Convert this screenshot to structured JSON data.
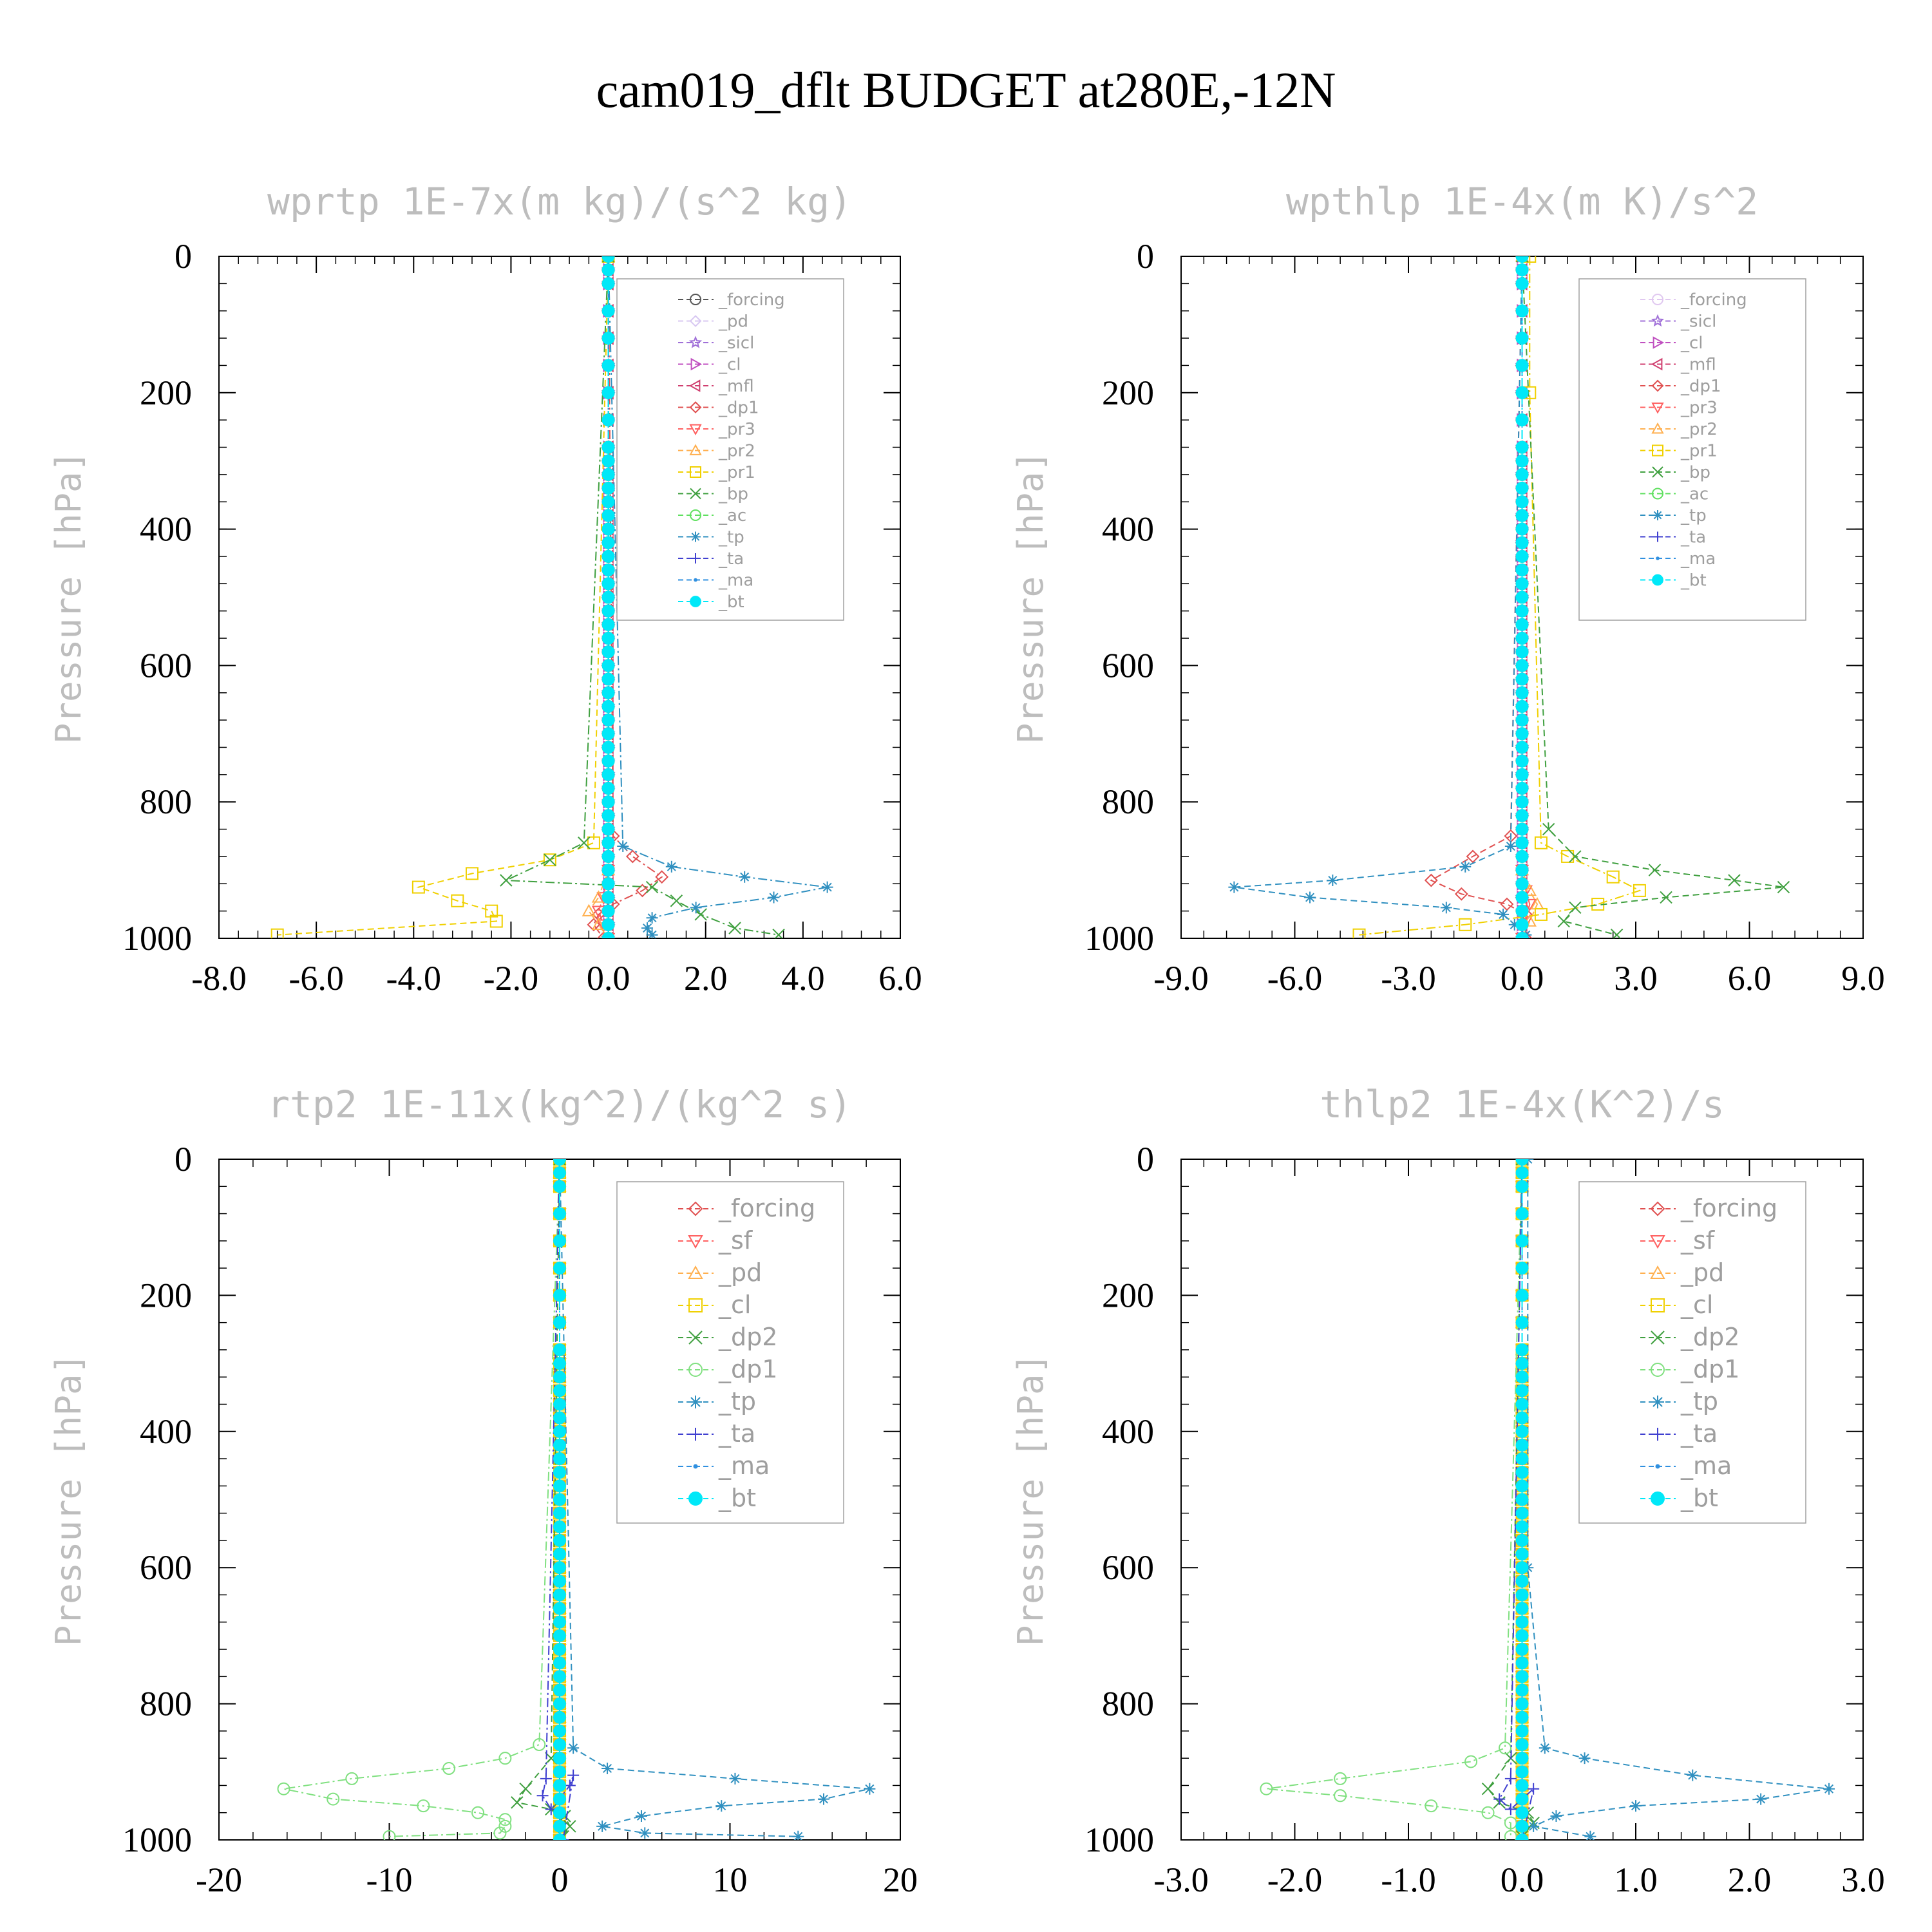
{
  "title": "cam019_dflt  BUDGET at280E,-12N",
  "chart_data": [
    {
      "type": "line",
      "title": "wprtp   1E-7x(m kg)/(s^2 kg)",
      "ylabel": "Pressure [hPa]",
      "xlim": [
        -8,
        6
      ],
      "ylim": [
        1000,
        0
      ],
      "xticks": [
        "-8.0",
        "-6.0",
        "-4.0",
        "-2.0",
        "0.0",
        "2.0",
        "4.0",
        "6.0"
      ],
      "yticks": [
        "0",
        "200",
        "400",
        "600",
        "800",
        "1000"
      ],
      "legend_position": "top-right",
      "series": [
        {
          "name": "_forcing",
          "color": "#555555",
          "marker": "circle",
          "x": [
            0,
            0
          ],
          "y": [
            0,
            1000
          ]
        },
        {
          "name": "_pd",
          "color": "#d8c8f2",
          "marker": "diamond",
          "x": [
            0,
            0
          ],
          "y": [
            0,
            1000
          ]
        },
        {
          "name": "_sicl",
          "color": "#a070d8",
          "marker": "star",
          "x": [
            0,
            0
          ],
          "y": [
            0,
            1000
          ]
        },
        {
          "name": "_cl",
          "color": "#c050c0",
          "marker": "tri-right",
          "x": [
            0,
            0
          ],
          "y": [
            0,
            1000
          ]
        },
        {
          "name": "_mfl",
          "color": "#d04070",
          "marker": "tri-left",
          "x": [
            0,
            0
          ],
          "y": [
            0,
            1000
          ]
        },
        {
          "name": "_dp1",
          "color": "#e05050",
          "marker": "diamond",
          "x": [
            0,
            0.1,
            0.5,
            1.1,
            0.7,
            0.1,
            -0.2,
            -0.3,
            -0.1
          ],
          "y": [
            0,
            850,
            880,
            910,
            930,
            950,
            965,
            980,
            1000
          ]
        },
        {
          "name": "_pr3",
          "color": "#ff6060",
          "marker": "tri-down",
          "x": [
            0,
            0,
            -0.1,
            -0.2,
            -0.1,
            0
          ],
          "y": [
            0,
            900,
            940,
            960,
            980,
            1000
          ]
        },
        {
          "name": "_pr2",
          "color": "#ffb050",
          "marker": "tri-up",
          "x": [
            0,
            0,
            -0.2,
            -0.4,
            -0.2,
            0
          ],
          "y": [
            0,
            900,
            940,
            960,
            980,
            1000
          ]
        },
        {
          "name": "_pr1",
          "color": "#f0d000",
          "marker": "square",
          "x": [
            0,
            -0.3,
            -1.2,
            -2.8,
            -3.9,
            -3.1,
            -2.4,
            -2.3,
            -6.8
          ],
          "y": [
            0,
            860,
            885,
            905,
            925,
            945,
            960,
            975,
            995
          ]
        },
        {
          "name": "_bp",
          "color": "#40a040",
          "marker": "x",
          "x": [
            0,
            -0.5,
            -1.2,
            -2.1,
            0.9,
            1.4,
            1.9,
            2.6,
            3.5
          ],
          "y": [
            0,
            860,
            885,
            915,
            925,
            945,
            965,
            985,
            995
          ]
        },
        {
          "name": "_ac",
          "color": "#60e060",
          "marker": "circle",
          "x": [
            0,
            0
          ],
          "y": [
            0,
            1000
          ]
        },
        {
          "name": "_tp",
          "color": "#3090c0",
          "marker": "asterisk",
          "x": [
            0,
            0.3,
            1.3,
            2.8,
            4.5,
            3.4,
            1.8,
            0.9,
            0.8,
            0.9
          ],
          "y": [
            0,
            865,
            895,
            910,
            925,
            940,
            955,
            970,
            985,
            995
          ]
        },
        {
          "name": "_ta",
          "color": "#4040d0",
          "marker": "plus",
          "x": [
            0,
            0
          ],
          "y": [
            0,
            1000
          ]
        },
        {
          "name": "_ma",
          "color": "#3090e0",
          "marker": "dot",
          "x": [
            0,
            0
          ],
          "y": [
            0,
            1000
          ]
        },
        {
          "name": "_bt",
          "color": "#00e8f8",
          "marker": "filled-circle",
          "x": [
            0,
            0
          ],
          "y": [
            0,
            1000
          ]
        }
      ]
    },
    {
      "type": "line",
      "title": "wpthlp   1E-4x(m K)/s^2",
      "ylabel": "Pressure [hPa]",
      "xlim": [
        -9,
        9
      ],
      "ylim": [
        1000,
        0
      ],
      "xticks": [
        "-9.0",
        "-6.0",
        "-3.0",
        "0.0",
        "3.0",
        "6.0",
        "9.0"
      ],
      "yticks": [
        "0",
        "200",
        "400",
        "600",
        "800",
        "1000"
      ],
      "legend_position": "top-right",
      "series": [
        {
          "name": "_forcing",
          "color": "#e0c8f0",
          "marker": "circle",
          "x": [
            0,
            0
          ],
          "y": [
            0,
            1000
          ]
        },
        {
          "name": "_sicl",
          "color": "#a070d8",
          "marker": "star",
          "x": [
            0,
            0
          ],
          "y": [
            0,
            1000
          ]
        },
        {
          "name": "_cl",
          "color": "#c050c0",
          "marker": "tri-right",
          "x": [
            0,
            0
          ],
          "y": [
            0,
            1000
          ]
        },
        {
          "name": "_mfl",
          "color": "#d04070",
          "marker": "tri-left",
          "x": [
            0,
            0
          ],
          "y": [
            0,
            1000
          ]
        },
        {
          "name": "_dp1",
          "color": "#e05050",
          "marker": "diamond",
          "x": [
            0,
            -0.3,
            -1.3,
            -2.4,
            -1.6,
            -0.4,
            0.1,
            0.1
          ],
          "y": [
            0,
            850,
            880,
            915,
            935,
            950,
            965,
            1000
          ]
        },
        {
          "name": "_pr3",
          "color": "#ff6060",
          "marker": "tri-down",
          "x": [
            0,
            0,
            0.1,
            0.2,
            0.1,
            0
          ],
          "y": [
            0,
            900,
            930,
            950,
            975,
            1000
          ]
        },
        {
          "name": "_pr2",
          "color": "#ffb050",
          "marker": "tri-up",
          "x": [
            0,
            0,
            0.2,
            0.4,
            0.2,
            0
          ],
          "y": [
            0,
            900,
            930,
            950,
            975,
            1000
          ]
        },
        {
          "name": "_pr1",
          "color": "#f0d000",
          "marker": "square",
          "x": [
            0.2,
            0.2,
            0.5,
            1.2,
            2.4,
            3.1,
            2.0,
            0.5,
            -1.5,
            -4.3
          ],
          "y": [
            0,
            200,
            860,
            880,
            910,
            930,
            950,
            965,
            980,
            995
          ]
        },
        {
          "name": "_bp",
          "color": "#40a040",
          "marker": "x",
          "x": [
            0,
            0.7,
            1.4,
            3.5,
            5.6,
            6.9,
            3.8,
            1.4,
            1.1,
            2.5
          ],
          "y": [
            0,
            840,
            880,
            900,
            915,
            925,
            940,
            955,
            975,
            995
          ]
        },
        {
          "name": "_ac",
          "color": "#60e060",
          "marker": "circle",
          "x": [
            0,
            0
          ],
          "y": [
            0,
            1000
          ]
        },
        {
          "name": "_tp",
          "color": "#3090c0",
          "marker": "asterisk",
          "x": [
            0,
            -0.3,
            -1.5,
            -5.0,
            -7.6,
            -5.6,
            -2.0,
            -0.5,
            -0.2,
            0.1
          ],
          "y": [
            0,
            865,
            895,
            915,
            925,
            940,
            955,
            965,
            980,
            995
          ]
        },
        {
          "name": "_ta",
          "color": "#4040d0",
          "marker": "plus",
          "x": [
            0,
            0
          ],
          "y": [
            0,
            1000
          ]
        },
        {
          "name": "_ma",
          "color": "#3090e0",
          "marker": "dot",
          "x": [
            0,
            0
          ],
          "y": [
            0,
            1000
          ]
        },
        {
          "name": "_bt",
          "color": "#00e8f8",
          "marker": "filled-circle",
          "x": [
            0,
            0
          ],
          "y": [
            0,
            1000
          ]
        }
      ]
    },
    {
      "type": "line",
      "title": "rtp2   1E-11x(kg^2)/(kg^2 s)",
      "ylabel": "Pressure [hPa]",
      "xlim": [
        -20,
        20
      ],
      "ylim": [
        1000,
        0
      ],
      "xticks": [
        "-20",
        "-10",
        "0",
        "10",
        "20"
      ],
      "yticks": [
        "0",
        "200",
        "400",
        "600",
        "800",
        "1000"
      ],
      "legend_position": "top-right",
      "series": [
        {
          "name": "_forcing",
          "color": "#e05050",
          "marker": "diamond",
          "x": [
            0,
            0
          ],
          "y": [
            0,
            1000
          ]
        },
        {
          "name": "_sf",
          "color": "#ff6060",
          "marker": "tri-down",
          "x": [
            0,
            0
          ],
          "y": [
            0,
            1000
          ]
        },
        {
          "name": "_pd",
          "color": "#ffb050",
          "marker": "tri-up",
          "x": [
            0,
            0
          ],
          "y": [
            0,
            1000
          ]
        },
        {
          "name": "_cl",
          "color": "#f0d000",
          "marker": "square",
          "x": [
            0,
            0
          ],
          "y": [
            0,
            1000
          ]
        },
        {
          "name": "_dp2",
          "color": "#40a040",
          "marker": "x",
          "x": [
            0,
            -0.5,
            -2.0,
            -2.5,
            -0.5,
            0.3,
            0.6,
            0.2
          ],
          "y": [
            0,
            880,
            925,
            945,
            955,
            965,
            980,
            995
          ]
        },
        {
          "name": "_dp1",
          "color": "#80e080",
          "marker": "circle",
          "x": [
            0,
            -1.2,
            -3.2,
            -6.5,
            -12.2,
            -16.2,
            -13.3,
            -8.0,
            -4.8,
            -3.2,
            -3.2,
            -3.5,
            -10
          ],
          "y": [
            0,
            860,
            880,
            895,
            910,
            925,
            940,
            950,
            960,
            970,
            980,
            990,
            995
          ]
        },
        {
          "name": "_tp",
          "color": "#3090c0",
          "marker": "asterisk",
          "x": [
            0,
            0.8,
            2.8,
            10.3,
            18.2,
            15.5,
            9.5,
            4.8,
            2.5,
            5.0,
            14.0
          ],
          "y": [
            0,
            865,
            895,
            910,
            925,
            940,
            950,
            965,
            980,
            990,
            995
          ]
        },
        {
          "name": "_ta",
          "color": "#4040d0",
          "marker": "plus",
          "x": [
            0,
            -0.8,
            -1.0,
            -0.5,
            0.6,
            0.8,
            0.2
          ],
          "y": [
            0,
            910,
            935,
            955,
            920,
            905,
            1000
          ]
        },
        {
          "name": "_ma",
          "color": "#3090e0",
          "marker": "dot",
          "x": [
            0,
            0
          ],
          "y": [
            0,
            1000
          ]
        },
        {
          "name": "_bt",
          "color": "#00e8f8",
          "marker": "filled-circle",
          "x": [
            0,
            0
          ],
          "y": [
            0,
            1000
          ]
        }
      ]
    },
    {
      "type": "line",
      "title": "thlp2   1E-4x(K^2)/s",
      "ylabel": "Pressure [hPa]",
      "xlim": [
        -3,
        3
      ],
      "ylim": [
        1000,
        0
      ],
      "xticks": [
        "-3.0",
        "-2.0",
        "-1.0",
        "0.0",
        "1.0",
        "2.0",
        "3.0"
      ],
      "yticks": [
        "0",
        "200",
        "400",
        "600",
        "800",
        "1000"
      ],
      "legend_position": "top-right",
      "series": [
        {
          "name": "_forcing",
          "color": "#e05050",
          "marker": "diamond",
          "x": [
            0,
            0
          ],
          "y": [
            0,
            1000
          ]
        },
        {
          "name": "_sf",
          "color": "#ff6060",
          "marker": "tri-down",
          "x": [
            0,
            0
          ],
          "y": [
            0,
            1000
          ]
        },
        {
          "name": "_pd",
          "color": "#ffb050",
          "marker": "tri-up",
          "x": [
            0,
            0
          ],
          "y": [
            0,
            1000
          ]
        },
        {
          "name": "_cl",
          "color": "#f0d000",
          "marker": "square",
          "x": [
            0,
            0
          ],
          "y": [
            0,
            1000
          ]
        },
        {
          "name": "_dp2",
          "color": "#40a040",
          "marker": "x",
          "x": [
            0,
            -0.1,
            -0.3,
            -0.2,
            0.05,
            0.1,
            0
          ],
          "y": [
            0,
            880,
            925,
            945,
            960,
            975,
            995
          ]
        },
        {
          "name": "_dp1",
          "color": "#80e080",
          "marker": "circle",
          "x": [
            0,
            -0.15,
            -0.45,
            -1.6,
            -2.25,
            -1.6,
            -0.8,
            -0.3,
            -0.1,
            -0.1
          ],
          "y": [
            0,
            865,
            885,
            910,
            925,
            935,
            950,
            960,
            975,
            995
          ]
        },
        {
          "name": "_tp",
          "color": "#3090c0",
          "marker": "asterisk",
          "x": [
            0.05,
            0.05,
            0.2,
            0.55,
            1.5,
            2.7,
            2.1,
            1.0,
            0.3,
            0.1,
            0.6
          ],
          "y": [
            0,
            600,
            865,
            880,
            905,
            925,
            940,
            950,
            965,
            980,
            995
          ]
        },
        {
          "name": "_ta",
          "color": "#4040d0",
          "marker": "plus",
          "x": [
            0,
            -0.1,
            -0.2,
            -0.1,
            0.1,
            0
          ],
          "y": [
            0,
            910,
            940,
            955,
            925,
            1000
          ]
        },
        {
          "name": "_ma",
          "color": "#3090e0",
          "marker": "dot",
          "x": [
            0,
            0
          ],
          "y": [
            0,
            1000
          ]
        },
        {
          "name": "_bt",
          "color": "#00e8f8",
          "marker": "filled-circle",
          "x": [
            0,
            0
          ],
          "y": [
            0,
            1000
          ]
        }
      ]
    }
  ]
}
